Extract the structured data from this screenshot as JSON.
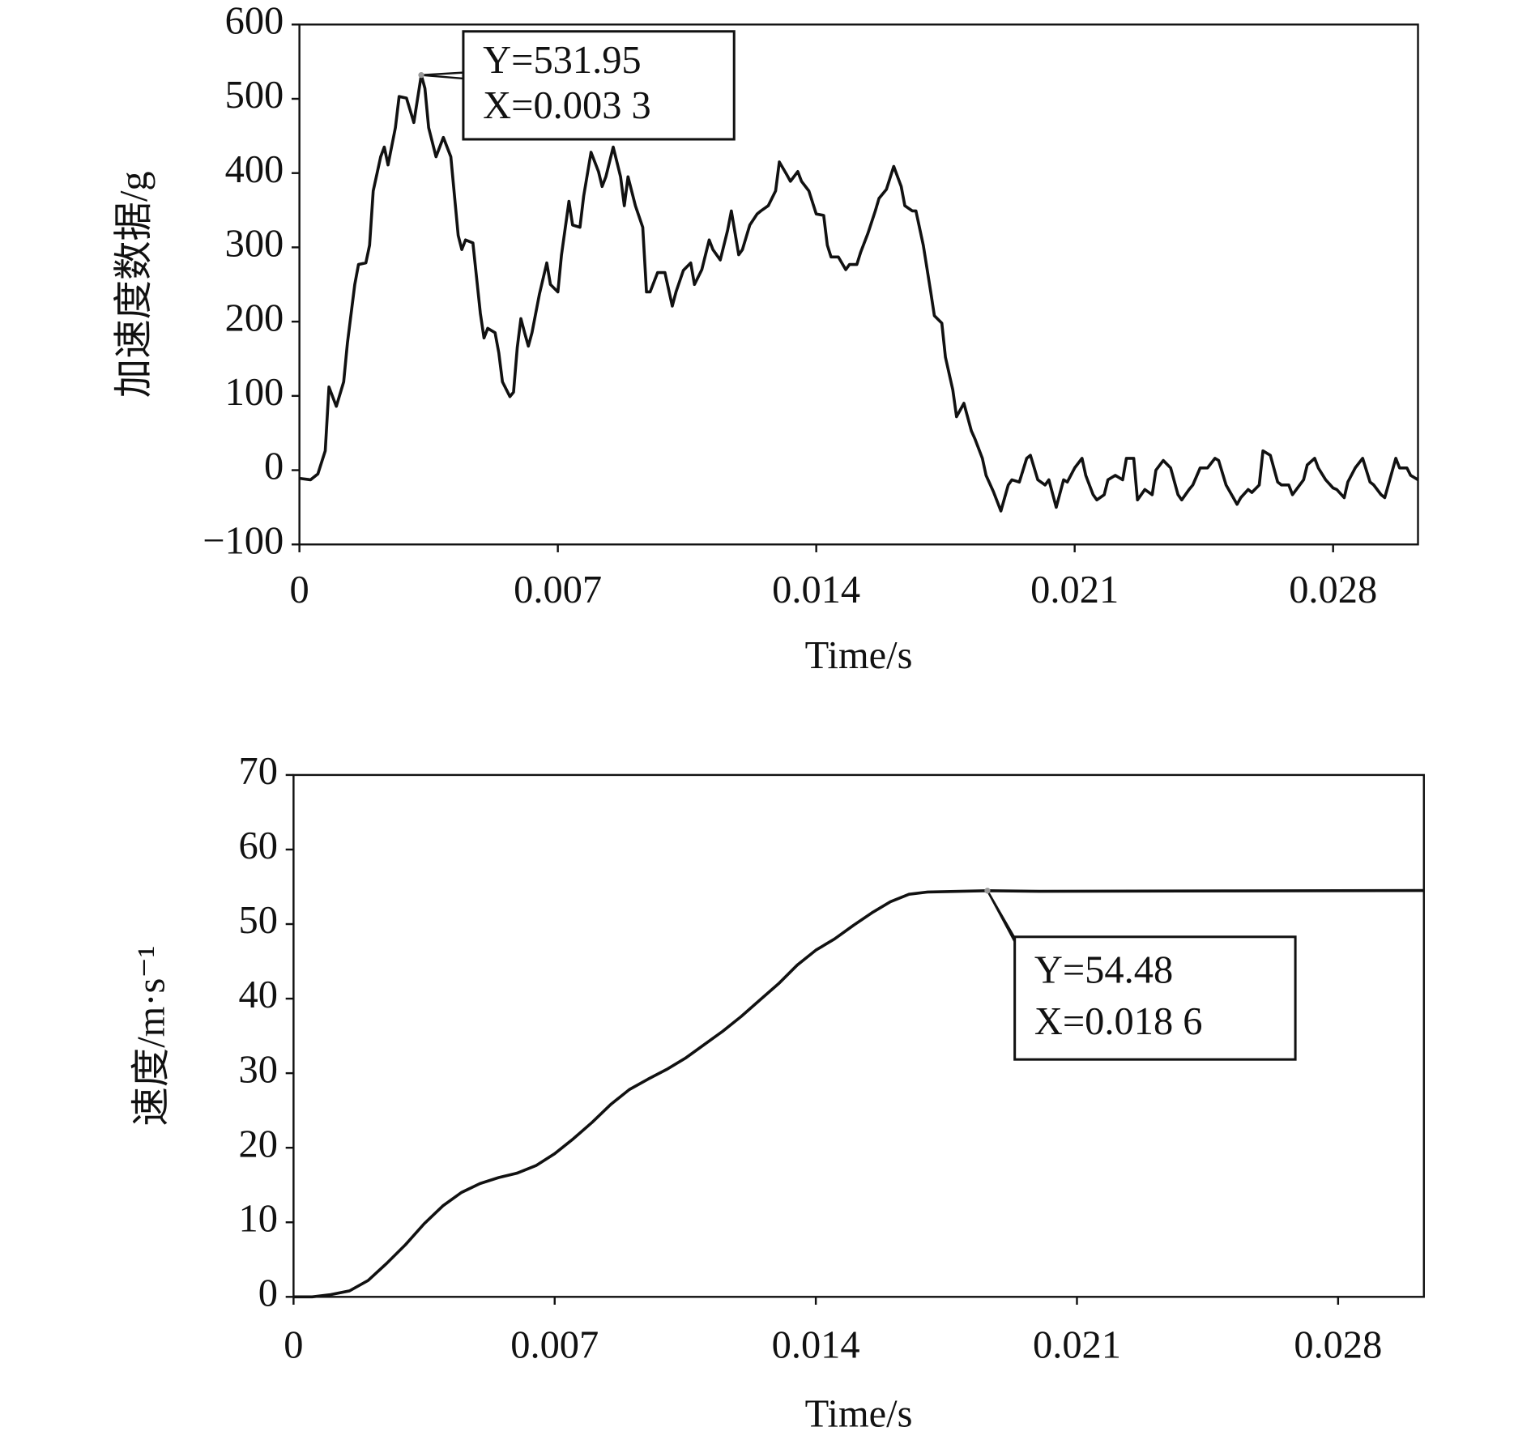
{
  "chart_data": [
    {
      "type": "line",
      "x_label": "Time/s",
      "y_label": "加速度数据/g",
      "color": "#111111",
      "xlim": [
        0,
        0.0303
      ],
      "xticks": [
        0,
        0.007,
        0.014,
        0.021,
        0.028
      ],
      "ylim": [
        -100,
        600
      ],
      "yticks": [
        {
          "value": -100,
          "label": "−100"
        },
        0,
        100,
        200,
        300,
        400,
        500,
        600
      ],
      "grid": false,
      "x": [
        0,
        0.0003,
        0.0005,
        0.0007,
        0.0008,
        0.001,
        0.0012,
        0.0013,
        0.0015,
        0.0016,
        0.0018,
        0.0019,
        0.002,
        0.0022,
        0.0023,
        0.0024,
        0.0026,
        0.0027,
        0.0029,
        0.0031,
        0.0033,
        0.0034,
        0.0035,
        0.0037,
        0.0039,
        0.0041,
        0.0043,
        0.0044,
        0.0045,
        0.0047,
        0.0049,
        0.005,
        0.0051,
        0.0053,
        0.0054,
        0.0055,
        0.0057,
        0.0058,
        0.0059,
        0.006,
        0.0061,
        0.0062,
        0.0063,
        0.0065,
        0.0067,
        0.0068,
        0.007,
        0.0071,
        0.0073,
        0.0074,
        0.0076,
        0.0077,
        0.0079,
        0.0081,
        0.0082,
        0.0083,
        0.0085,
        0.0087,
        0.0088,
        0.0089,
        0.0091,
        0.0093,
        0.0094,
        0.0095,
        0.0097,
        0.0099,
        0.0101,
        0.0102,
        0.0104,
        0.0106,
        0.0107,
        0.0109,
        0.0111,
        0.0112,
        0.0114,
        0.0116,
        0.0117,
        0.0119,
        0.012,
        0.0122,
        0.0124,
        0.0125,
        0.0127,
        0.0129,
        0.013,
        0.0132,
        0.0133,
        0.0135,
        0.0136,
        0.0138,
        0.014,
        0.0142,
        0.0143,
        0.0144,
        0.0146,
        0.0148,
        0.0149,
        0.0151,
        0.0152,
        0.0154,
        0.0156,
        0.0157,
        0.0159,
        0.0161,
        0.0163,
        0.0164,
        0.0166,
        0.0167,
        0.0169,
        0.0171,
        0.0172,
        0.0174,
        0.0175,
        0.0177,
        0.0178,
        0.018,
        0.0182,
        0.0183,
        0.0185,
        0.0186,
        0.0188,
        0.019,
        0.0192,
        0.0193,
        0.0195,
        0.0197,
        0.0198,
        0.02,
        0.0202,
        0.0203,
        0.0205,
        0.0207,
        0.0208,
        0.021,
        0.0212,
        0.0213,
        0.0215,
        0.0216,
        0.0218,
        0.0219,
        0.0221,
        0.0223,
        0.0224,
        0.0226,
        0.0227,
        0.0229,
        0.0231,
        0.0232,
        0.0234,
        0.0236,
        0.0238,
        0.0239,
        0.0241,
        0.0242,
        0.0244,
        0.0246,
        0.0248,
        0.0249,
        0.0251,
        0.0254,
        0.0255,
        0.0257,
        0.0258,
        0.026,
        0.0261,
        0.0263,
        0.0265,
        0.0266,
        0.0268,
        0.0269,
        0.0272,
        0.0273,
        0.0275,
        0.0276,
        0.0278,
        0.028,
        0.0281,
        0.0283,
        0.0284,
        0.0286,
        0.0288,
        0.029,
        0.0291,
        0.0293,
        0.0294,
        0.0297,
        0.0298,
        0.03,
        0.0301,
        0.0303
      ],
      "values": [
        -11,
        -13,
        -5,
        26,
        112,
        86,
        119,
        171,
        250,
        277,
        279,
        303,
        376,
        422,
        435,
        411,
        461,
        503,
        501,
        468,
        532,
        514,
        461,
        422,
        448,
        422,
        316,
        297,
        310,
        306,
        211,
        178,
        191,
        185,
        158,
        119,
        99,
        105,
        165,
        204,
        185,
        167,
        185,
        237,
        279,
        250,
        240,
        290,
        362,
        330,
        327,
        369,
        428,
        402,
        382,
        395,
        435,
        395,
        356,
        395,
        356,
        327,
        240,
        240,
        266,
        266,
        221,
        240,
        269,
        279,
        250,
        270,
        310,
        297,
        283,
        323,
        349,
        290,
        297,
        330,
        345,
        349,
        356,
        376,
        415,
        398,
        389,
        402,
        389,
        376,
        345,
        343,
        303,
        287,
        287,
        270,
        277,
        277,
        293,
        319,
        349,
        366,
        378,
        409,
        382,
        356,
        349,
        349,
        303,
        240,
        208,
        198,
        152,
        108,
        72,
        90,
        53,
        42,
        16,
        -7,
        -29,
        -55,
        -20,
        -13,
        -16,
        16,
        20,
        -13,
        -20,
        -13,
        -50,
        -13,
        -16,
        3,
        16,
        -7,
        -33,
        -40,
        -33,
        -13,
        -7,
        -13,
        16,
        16,
        -40,
        -26,
        -33,
        0,
        13,
        3,
        -33,
        -40,
        -26,
        -20,
        3,
        3,
        16,
        13,
        -20,
        -46,
        -37,
        -26,
        -30,
        -20,
        26,
        20,
        -16,
        -20,
        -20,
        -33,
        -13,
        7,
        16,
        3,
        -13,
        -24,
        -26,
        -37,
        -16,
        3,
        16,
        -16,
        -20,
        -33,
        -37,
        16,
        3,
        3,
        -7,
        -13
      ],
      "annotation": {
        "x": 0.0033,
        "y": 531.95,
        "lines": [
          "Y=531.95",
          "X=0.003 3"
        ]
      }
    },
    {
      "type": "line",
      "x_label": "Time/s",
      "y_label": "速度/m·s⁻¹",
      "color": "#111111",
      "xlim": [
        0,
        0.0303
      ],
      "xticks": [
        0,
        0.007,
        0.014,
        0.021,
        0.028
      ],
      "ylim": [
        0,
        70
      ],
      "yticks": [
        0,
        10,
        20,
        30,
        40,
        50,
        60,
        70
      ],
      "grid": false,
      "x": [
        0,
        0.0005,
        0.001,
        0.0015,
        0.002,
        0.0025,
        0.003,
        0.0035,
        0.004,
        0.0045,
        0.005,
        0.0055,
        0.006,
        0.0065,
        0.007,
        0.0075,
        0.008,
        0.0085,
        0.009,
        0.0095,
        0.01,
        0.0105,
        0.011,
        0.0115,
        0.012,
        0.0125,
        0.013,
        0.0135,
        0.014,
        0.0145,
        0.015,
        0.0155,
        0.016,
        0.0165,
        0.017,
        0.0186,
        0.02,
        0.025,
        0.0303
      ],
      "values": [
        0,
        0,
        0.3,
        0.8,
        2.2,
        4.5,
        7,
        9.8,
        12.2,
        14,
        15.2,
        16,
        16.6,
        17.6,
        19.2,
        21.2,
        23.4,
        25.8,
        27.8,
        29.2,
        30.5,
        32,
        33.8,
        35.6,
        37.6,
        39.8,
        42,
        44.5,
        46.5,
        48,
        49.8,
        51.5,
        53,
        54,
        54.3,
        54.48,
        54.4,
        54.45,
        54.5
      ],
      "annotation": {
        "x": 0.0186,
        "y": 54.48,
        "lines": [
          "Y=54.48",
          "X=0.018 6"
        ]
      }
    }
  ]
}
